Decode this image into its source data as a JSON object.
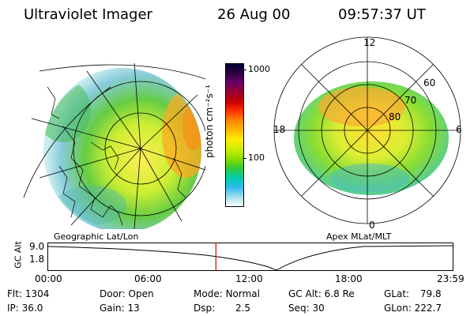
{
  "header": {
    "title": "Ultraviolet Imager",
    "date": "26 Aug 00",
    "time": "09:57:37 UT"
  },
  "colorbar": {
    "unit": "photon cm⁻²s⁻¹",
    "ticks": [
      "1000",
      "100"
    ],
    "colors": [
      "#000033",
      "#330044",
      "#660066",
      "#990033",
      "#cc0000",
      "#ff3300",
      "#ff8800",
      "#ffbb00",
      "#ffee00",
      "#ccee00",
      "#88dd00",
      "#33cc33",
      "#00ccaa",
      "#33bbee",
      "#99ddee",
      "#ffffff"
    ]
  },
  "geo_map": {
    "caption": "Geographic Lat/Lon"
  },
  "polar_map": {
    "caption": "Apex MLat/MLT",
    "mlt_labels": {
      "top": "12",
      "left": "18",
      "right": "6",
      "bottom": "0"
    },
    "lat_labels": [
      "60",
      "70",
      "80"
    ]
  },
  "timeline": {
    "axis_label": "GC Alt",
    "y_ticks": [
      "9.0",
      "1.8"
    ],
    "x_ticks": [
      "00:00",
      "06:00",
      "12:00",
      "18:00",
      "23:59"
    ],
    "current_time_fraction": 0.415
  },
  "info": {
    "flt": {
      "label": "Flt:",
      "value": "1304"
    },
    "ip": {
      "label": "IP:",
      "value": "36.0"
    },
    "door": {
      "label": "Door:",
      "value": "Open"
    },
    "gain": {
      "label": "Gain:",
      "value": "13"
    },
    "mode": {
      "label": "Mode:",
      "value": "Normal"
    },
    "dsp": {
      "label": "Dsp:",
      "value": "2.5"
    },
    "gcalt": {
      "label": "GC Alt:",
      "value": "6.8 Re"
    },
    "seq": {
      "label": "Seq:",
      "value": "30"
    },
    "glat": {
      "label": "GLat:",
      "value": "79.8"
    },
    "glon": {
      "label": "GLon:",
      "value": "222.7"
    }
  }
}
